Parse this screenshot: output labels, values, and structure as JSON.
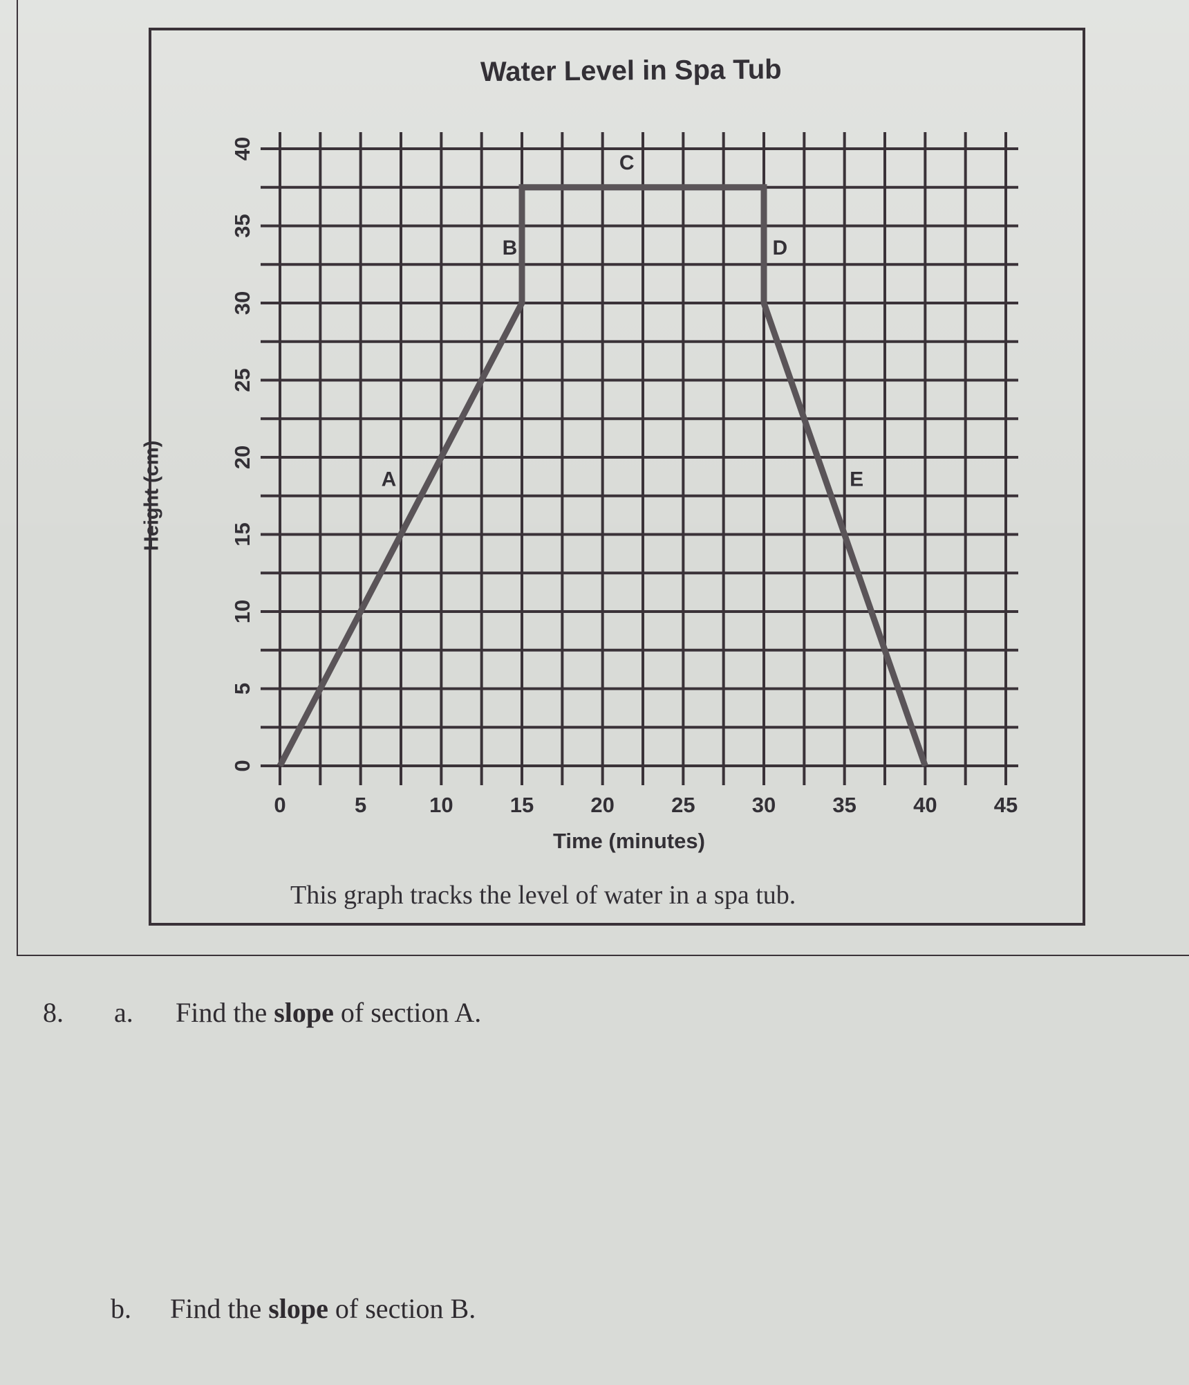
{
  "chart_data": {
    "type": "line",
    "title": "Water Level in Spa Tub",
    "xlabel": "Time (minutes)",
    "ylabel": "Height (cm)",
    "x_ticks": [
      0,
      5,
      10,
      15,
      20,
      25,
      30,
      35,
      40,
      45
    ],
    "y_ticks": [
      0,
      5,
      10,
      15,
      20,
      25,
      30,
      35,
      40
    ],
    "xlim": [
      0,
      45
    ],
    "ylim": [
      0,
      40
    ],
    "grid": true,
    "grid_step_x": 2.5,
    "grid_step_y": 2.5,
    "series": [
      {
        "name": "Water level",
        "x": [
          0,
          15,
          15,
          30,
          30,
          40
        ],
        "y": [
          0,
          30,
          37.5,
          37.5,
          30,
          0
        ]
      }
    ],
    "annotations": [
      {
        "label": "A",
        "x": 6.75,
        "y": 18.5
      },
      {
        "label": "B",
        "x": 14.25,
        "y": 33.5
      },
      {
        "label": "C",
        "x": 21.5,
        "y": 39
      },
      {
        "label": "D",
        "x": 31,
        "y": 33.5
      },
      {
        "label": "E",
        "x": 35.75,
        "y": 18.5
      }
    ],
    "caption": "This graph tracks the level of water in a spa tub."
  },
  "colors": {
    "paper": "#d9dbd7",
    "grid": "#3a3238",
    "line": "#5a5458"
  },
  "question": {
    "number": "8.",
    "a": {
      "letter": "a.",
      "text_before": "Find the ",
      "bold": "slope",
      "text_after": " of section A."
    },
    "b": {
      "letter": "b.",
      "text_before": "Find the ",
      "bold": "slope",
      "text_after": " of section B."
    }
  }
}
